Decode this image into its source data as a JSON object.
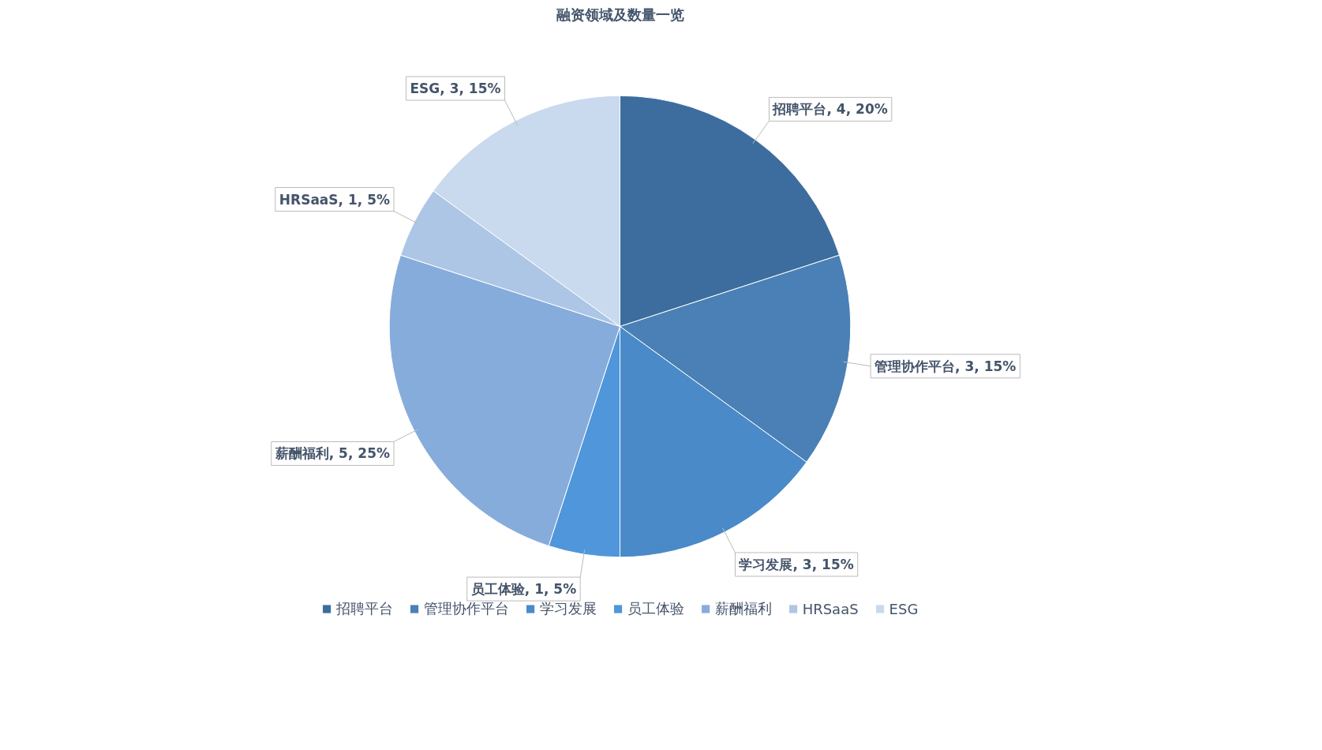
{
  "chart_data": {
    "type": "pie",
    "title": "融资领域及数量一览",
    "categories": [
      "招聘平台",
      "管理协作平台",
      "学习发展",
      "员工体验",
      "薪酬福利",
      "HRSaaS",
      "ESG"
    ],
    "values": [
      4,
      3,
      3,
      1,
      5,
      1,
      3
    ],
    "colors": [
      "#3d6d9e",
      "#4a80b5",
      "#4a8ac8",
      "#4f96da",
      "#86acdb",
      "#adc6e6",
      "#c9d9ee"
    ],
    "value_labels": [
      "招聘平台, 4, 20%",
      "管理协作平台, 3, 15%",
      "学习发展, 3, 15%",
      "员工体验, 1, 5%",
      "薪酬福利, 5, 25%",
      "HRSaaS, 1, 5%",
      "ESG, 3, 15%"
    ],
    "legend": "bottom"
  }
}
